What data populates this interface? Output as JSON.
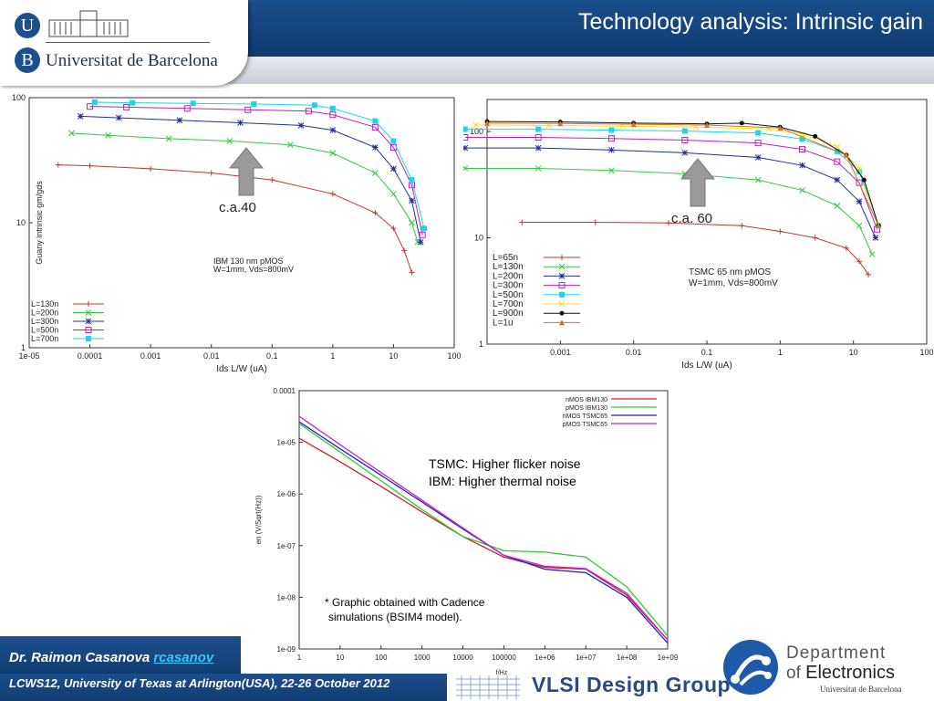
{
  "slide": {
    "title": "Technology analysis: Intrinsic gain",
    "university": {
      "letter_u": "U",
      "letter_b": "B",
      "name": "Universitat de Barcelona"
    },
    "footer": {
      "author": "Dr. Raimon Casanova",
      "email": "rcasanov",
      "conference": "LCWS12, University of Texas at Arlington(USA), 22-26 October 2012"
    },
    "vlsi": "VLSI Design Group",
    "department": {
      "line1": "Department",
      "line2_prefix": "of",
      "line2": "Electronics",
      "line3": "Universitat de Barcelona"
    },
    "arrow_label_ibm": "c.a.40",
    "arrow_label_tsmc": "c.a. 60"
  },
  "chart_data": [
    {
      "type": "scatter",
      "scale": "log-log",
      "ylabel": "Guany intrinsic gm/gds",
      "xlabel": "Ids L/W (uA)",
      "xlim": [
        1e-05,
        100
      ],
      "ylim": [
        1,
        100
      ],
      "xticks": [
        "1e-05",
        "0.0001",
        "0.001",
        "0.01",
        "0.1",
        "1",
        "10",
        "100"
      ],
      "yticks": [
        "1",
        "10",
        "100"
      ],
      "annotation": [
        "IBM 130 nm pMOS",
        "W=1mm, Vds=800mV"
      ],
      "legend_placement": "bottom-left",
      "series": [
        {
          "name": "L=130n",
          "color": "#c0392b",
          "marker": "+",
          "x": [
            3e-05,
            0.0001,
            0.001,
            0.01,
            0.1,
            1,
            5,
            10,
            15,
            20
          ],
          "y": [
            29,
            28.5,
            27,
            25,
            22,
            17,
            12,
            9,
            6,
            4
          ]
        },
        {
          "name": "L=200n",
          "color": "#2ecc40",
          "marker": "x",
          "x": [
            5e-05,
            0.0002,
            0.002,
            0.02,
            0.2,
            1,
            5,
            10,
            20,
            25
          ],
          "y": [
            52,
            50,
            47,
            45,
            42,
            36,
            25,
            17,
            10,
            7
          ]
        },
        {
          "name": "L=300n",
          "color": "#1f2fa0",
          "marker": "*",
          "x": [
            7e-05,
            0.0003,
            0.003,
            0.03,
            0.3,
            1,
            5,
            10,
            20,
            28
          ],
          "y": [
            71,
            69,
            66,
            63,
            60,
            55,
            40,
            27,
            15,
            7
          ]
        },
        {
          "name": "L=500n",
          "color": "#c020c0",
          "marker": "square",
          "x": [
            0.0001,
            0.0004,
            0.004,
            0.04,
            0.4,
            1,
            5,
            10,
            20,
            30
          ],
          "y": [
            85,
            84,
            82,
            80,
            78,
            73,
            58,
            40,
            20,
            8
          ]
        },
        {
          "name": "L=700n",
          "color": "#18d8e8",
          "marker": "square-filled",
          "x": [
            0.00012,
            0.0005,
            0.005,
            0.05,
            0.5,
            1,
            5,
            10,
            20,
            32
          ],
          "y": [
            92,
            91,
            90,
            89,
            87,
            82,
            65,
            45,
            22,
            9
          ]
        }
      ]
    },
    {
      "type": "scatter",
      "scale": "log-log",
      "xlabel": "Ids L/W (uA)",
      "xlim": [
        0.0001,
        100
      ],
      "ylim": [
        1,
        200
      ],
      "xticks": [
        "0.001",
        "0.01",
        "0.1",
        "1",
        "10",
        "100"
      ],
      "yticks": [
        "1",
        "10",
        "100"
      ],
      "annotation": [
        "TSMC 65 nm pMOS",
        "W=1mm, Vds=800mV"
      ],
      "legend_placement": "bottom-left",
      "series": [
        {
          "name": "L=65n",
          "color": "#c0392b",
          "marker": "+",
          "x": [
            0.0003,
            0.003,
            0.03,
            0.3,
            1,
            3,
            8,
            12,
            16
          ],
          "y": [
            14,
            14,
            13.8,
            13,
            11.5,
            10,
            8,
            6,
            4.5
          ]
        },
        {
          "name": "L=130n",
          "color": "#2ecc40",
          "marker": "x",
          "x": [
            5e-05,
            0.0005,
            0.005,
            0.05,
            0.5,
            2,
            6,
            12,
            18
          ],
          "y": [
            45,
            45,
            43,
            40,
            35,
            28,
            20,
            13,
            7
          ]
        },
        {
          "name": "L=200n",
          "color": "#1f2fa0",
          "marker": "*",
          "x": [
            5e-05,
            0.0005,
            0.005,
            0.05,
            0.5,
            2,
            6,
            12,
            20
          ],
          "y": [
            70,
            70,
            67,
            63,
            57,
            48,
            35,
            22,
            10
          ]
        },
        {
          "name": "L=300n",
          "color": "#c020c0",
          "marker": "square",
          "x": [
            5e-05,
            0.0005,
            0.005,
            0.05,
            0.5,
            2,
            6,
            12,
            21
          ],
          "y": [
            88,
            88,
            86,
            83,
            78,
            68,
            52,
            33,
            12
          ]
        },
        {
          "name": "L=500n",
          "color": "#18d8e8",
          "marker": "square-filled",
          "x": [
            5e-05,
            0.0005,
            0.005,
            0.05,
            0.5,
            2,
            6,
            12,
            22
          ],
          "y": [
            105,
            105,
            103,
            101,
            97,
            85,
            65,
            42,
            13
          ]
        },
        {
          "name": "L=700n",
          "color": "#f1e21a",
          "marker": "x",
          "x": [
            7e-05,
            0.0007,
            0.007,
            0.07,
            0.7,
            2,
            6,
            12,
            22
          ],
          "y": [
            115,
            114,
            112,
            110,
            106,
            94,
            72,
            45,
            13
          ]
        },
        {
          "name": "L=900n",
          "color": "#111111",
          "marker": "dot",
          "x": [
            0.0001,
            0.001,
            0.01,
            0.1,
            0.3,
            1,
            3,
            8,
            14,
            22
          ],
          "y": [
            124,
            123,
            120,
            118,
            120,
            110,
            90,
            60,
            35,
            13
          ]
        },
        {
          "name": "L=1u",
          "color": "#e07020",
          "marker": "triangle",
          "x": [
            0.0001,
            0.001,
            0.01,
            0.1,
            1,
            8,
            22
          ],
          "y": [
            120,
            119,
            117,
            115,
            108,
            60,
            13
          ]
        }
      ]
    },
    {
      "type": "line",
      "scale": "log-log",
      "xlabel": "f/Hz",
      "ylabel": "en (V/Sqrt(Hz))",
      "xlim": [
        1,
        1000000000.0
      ],
      "ylim": [
        1e-09,
        0.0001
      ],
      "xticks": [
        "1",
        "10",
        "100",
        "1000",
        "10000",
        "100000",
        "1e+06",
        "1e+07",
        "1e+08",
        "1e+09"
      ],
      "yticks": [
        "1e-09",
        "1e-08",
        "1e-07",
        "1e-06",
        "1e-05",
        "0.0001"
      ],
      "legend_placement": "top-right",
      "annotations": [
        "TSMC: Higher flicker noise",
        "IBM: Higher thermal noise",
        "* Graphic obtained with Cadence",
        "simulations (BSIM4 model)."
      ],
      "series": [
        {
          "name": "nMOS IBM130",
          "color": "#cc2020",
          "x": [
            1,
            10,
            100,
            1000,
            10000,
            100000,
            1000000,
            10000000,
            100000000,
            1000000000
          ],
          "y": [
            1.2e-05,
            4.2e-06,
            1.4e-06,
            4.5e-07,
            1.5e-07,
            6e-08,
            3.8e-08,
            3.5e-08,
            1.1e-08,
            1.5e-09
          ]
        },
        {
          "name": "pMOS IBM130",
          "color": "#30cc30",
          "x": [
            1,
            10,
            100,
            1000,
            10000,
            100000,
            1000000,
            10000000,
            100000000,
            1000000000
          ],
          "y": [
            2.3e-05,
            6.5e-06,
            1.8e-06,
            5e-07,
            1.5e-07,
            8e-08,
            7.5e-08,
            6e-08,
            1.6e-08,
            1.8e-09
          ]
        },
        {
          "name": "nMOS TSMC65",
          "color": "#2020cc",
          "x": [
            1,
            10,
            100,
            1000,
            10000,
            100000,
            1000000,
            10000000,
            100000000,
            1000000000
          ],
          "y": [
            2.5e-05,
            7.5e-06,
            2.3e-06,
            7e-07,
            2.1e-07,
            6.5e-08,
            3.5e-08,
            3e-08,
            1e-08,
            1.3e-09
          ]
        },
        {
          "name": "pMOS TSMC65",
          "color": "#cc20cc",
          "x": [
            1,
            10,
            100,
            1000,
            10000,
            100000,
            1000000,
            10000000,
            100000000,
            1000000000
          ],
          "y": [
            3.2e-05,
            9e-06,
            2.6e-06,
            7.6e-07,
            2.2e-07,
            6.5e-08,
            4e-08,
            3.6e-08,
            1.2e-08,
            1.5e-09
          ]
        }
      ]
    }
  ]
}
